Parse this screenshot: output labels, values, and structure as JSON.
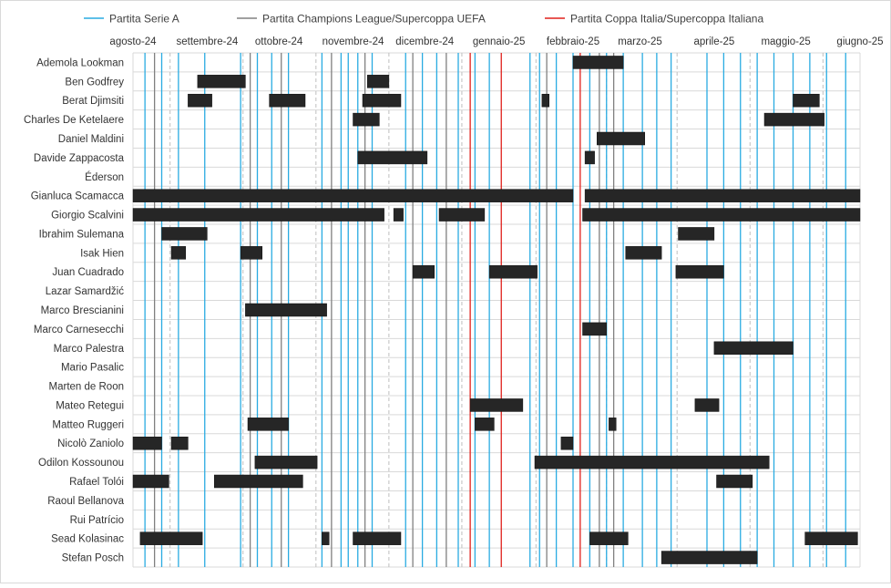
{
  "chart_data": {
    "type": "gantt",
    "legend": {
      "placement": "top",
      "items": [
        {
          "label": "Partita Serie A",
          "color": "#29ABE2"
        },
        {
          "label": "Partita Champions League/Supercoppa UEFA",
          "color": "#808080"
        },
        {
          "label": "Partita Coppa Italia/Supercoppa Italiana",
          "color": "#E0201B"
        }
      ]
    },
    "x_ticks": [
      {
        "label": "agosto-24",
        "date": "2024-08-01"
      },
      {
        "label": "settembre-24",
        "date": "2024-09-01"
      },
      {
        "label": "ottobre-24",
        "date": "2024-10-01"
      },
      {
        "label": "novembre-24",
        "date": "2024-11-01"
      },
      {
        "label": "dicembre-24",
        "date": "2024-12-01"
      },
      {
        "label": "gennaio-25",
        "date": "2025-01-01"
      },
      {
        "label": "febbraio-25",
        "date": "2025-02-01"
      },
      {
        "label": "marzo-25",
        "date": "2025-03-01"
      },
      {
        "label": "aprile-25",
        "date": "2025-04-01"
      },
      {
        "label": "maggio-25",
        "date": "2025-05-01"
      },
      {
        "label": "giugno-25",
        "date": "2025-06-01"
      }
    ],
    "xlim": [
      "2024-08-01",
      "2025-06-01"
    ],
    "grid": {
      "vertical_dashed_midmonth": true,
      "horizontal_row_lines": true
    },
    "match_lines": {
      "serie_a": [
        "2024-08-06",
        "2024-08-13",
        "2024-08-20",
        "2024-08-31",
        "2024-09-15",
        "2024-09-22",
        "2024-09-28",
        "2024-10-05",
        "2024-10-19",
        "2024-10-27",
        "2024-10-30",
        "2024-11-03",
        "2024-11-09",
        "2024-11-23",
        "2024-11-30",
        "2024-12-06",
        "2024-12-15",
        "2024-12-22",
        "2024-12-28",
        "2025-01-14",
        "2025-01-18",
        "2025-01-25",
        "2025-02-01",
        "2025-02-08",
        "2025-02-15",
        "2025-02-22",
        "2025-03-02",
        "2025-03-08",
        "2025-03-14",
        "2025-03-29",
        "2025-04-05",
        "2025-04-12",
        "2025-04-19",
        "2025-04-26",
        "2025-05-04",
        "2025-05-11",
        "2025-05-18",
        "2025-05-26"
      ],
      "champions": [
        "2024-08-10",
        "2024-09-19",
        "2024-10-02",
        "2024-10-23",
        "2024-11-06",
        "2024-11-26",
        "2024-12-10",
        "2025-01-21",
        "2025-02-12",
        "2025-02-18"
      ],
      "coppa": [
        "2024-12-20",
        "2025-01-02",
        "2025-02-04"
      ]
    },
    "rows": [
      {
        "player": "Ademola Lookman",
        "absences": [
          [
            "2025-02-01",
            "2025-02-22"
          ]
        ]
      },
      {
        "player": "Ben Godfrey",
        "absences": [
          [
            "2024-08-28",
            "2024-09-17"
          ],
          [
            "2024-11-07",
            "2024-11-16"
          ]
        ]
      },
      {
        "player": "Berat Djimsiti",
        "absences": [
          [
            "2024-08-24",
            "2024-09-03"
          ],
          [
            "2024-09-27",
            "2024-10-12"
          ],
          [
            "2024-11-05",
            "2024-11-21"
          ],
          [
            "2025-01-19",
            "2025-01-22"
          ],
          [
            "2025-05-04",
            "2025-05-15"
          ]
        ]
      },
      {
        "player": "Charles De Ketelaere",
        "absences": [
          [
            "2024-11-01",
            "2024-11-12"
          ],
          [
            "2025-04-22",
            "2025-05-17"
          ]
        ]
      },
      {
        "player": "Daniel Maldini",
        "absences": [
          [
            "2025-02-11",
            "2025-03-03"
          ]
        ]
      },
      {
        "player": "Davide Zappacosta",
        "absences": [
          [
            "2024-11-03",
            "2024-12-02"
          ],
          [
            "2025-02-06",
            "2025-02-10"
          ]
        ]
      },
      {
        "player": "Éderson",
        "absences": []
      },
      {
        "player": "Gianluca Scamacca",
        "absences": [
          [
            "2024-08-01",
            "2025-02-01"
          ],
          [
            "2025-02-06",
            "2025-06-01"
          ]
        ]
      },
      {
        "player": "Giorgio Scalvini",
        "absences": [
          [
            "2024-08-01",
            "2024-11-14"
          ],
          [
            "2024-11-18",
            "2024-11-22"
          ],
          [
            "2024-12-07",
            "2024-12-26"
          ],
          [
            "2025-02-05",
            "2025-06-01"
          ]
        ]
      },
      {
        "player": "Ibrahim Sulemana",
        "absences": [
          [
            "2024-08-13",
            "2024-09-01"
          ],
          [
            "2025-03-17",
            "2025-04-01"
          ]
        ]
      },
      {
        "player": "Isak Hien",
        "absences": [
          [
            "2024-08-17",
            "2024-08-23"
          ],
          [
            "2024-09-15",
            "2024-09-24"
          ],
          [
            "2025-02-23",
            "2025-03-10"
          ]
        ]
      },
      {
        "player": "Juan Cuadrado",
        "absences": [
          [
            "2024-11-26",
            "2024-12-05"
          ],
          [
            "2024-12-28",
            "2025-01-17"
          ],
          [
            "2025-03-16",
            "2025-04-05"
          ]
        ]
      },
      {
        "player": "Lazar Samardžić",
        "absences": []
      },
      {
        "player": "Marco Brescianini",
        "absences": [
          [
            "2024-09-17",
            "2024-10-21"
          ]
        ]
      },
      {
        "player": "Marco Carnesecchi",
        "absences": [
          [
            "2025-02-05",
            "2025-02-15"
          ]
        ]
      },
      {
        "player": "Marco Palestra",
        "absences": [
          [
            "2025-04-01",
            "2025-05-04"
          ]
        ]
      },
      {
        "player": "Mario Pasalic",
        "absences": []
      },
      {
        "player": "Marten de Roon",
        "absences": []
      },
      {
        "player": "Mateo Retegui",
        "absences": [
          [
            "2024-12-20",
            "2025-01-11"
          ],
          [
            "2025-03-24",
            "2025-04-03"
          ]
        ]
      },
      {
        "player": "Matteo Ruggeri",
        "absences": [
          [
            "2024-09-18",
            "2024-10-05"
          ],
          [
            "2024-12-22",
            "2024-12-30"
          ],
          [
            "2025-02-16",
            "2025-02-19"
          ]
        ]
      },
      {
        "player": "Nicolò Zaniolo",
        "absences": [
          [
            "2024-08-01",
            "2024-08-13"
          ],
          [
            "2024-08-17",
            "2024-08-24"
          ],
          [
            "2025-01-27",
            "2025-02-01"
          ]
        ]
      },
      {
        "player": "Odilon Kossounou",
        "absences": [
          [
            "2024-09-21",
            "2024-10-17"
          ],
          [
            "2025-01-16",
            "2025-04-24"
          ]
        ]
      },
      {
        "player": "Rafael Tolói",
        "absences": [
          [
            "2024-08-01",
            "2024-08-16"
          ],
          [
            "2024-09-04",
            "2024-10-11"
          ],
          [
            "2025-04-02",
            "2025-04-17"
          ]
        ]
      },
      {
        "player": "Raoul Bellanova",
        "absences": []
      },
      {
        "player": "Rui Patrício",
        "absences": []
      },
      {
        "player": "Sead Kolasinac",
        "absences": [
          [
            "2024-08-04",
            "2024-08-30"
          ],
          [
            "2024-10-19",
            "2024-10-22"
          ],
          [
            "2024-11-01",
            "2024-11-21"
          ],
          [
            "2025-02-08",
            "2025-02-24"
          ],
          [
            "2025-05-09",
            "2025-05-31"
          ]
        ]
      },
      {
        "player": "Stefan Posch",
        "absences": [
          [
            "2025-03-10",
            "2025-04-19"
          ]
        ]
      }
    ]
  }
}
